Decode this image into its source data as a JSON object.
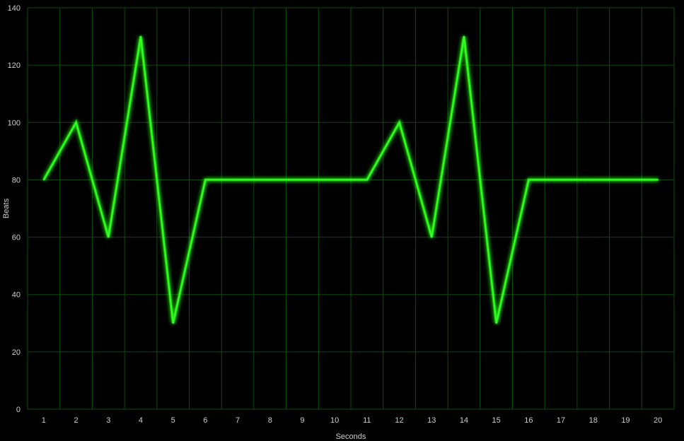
{
  "colors": {
    "background": "#000000",
    "gridline": "#0b4d0b",
    "series_line": "#33ff22",
    "series_glow": "#2aff1a",
    "text": "#cfcfcf"
  },
  "chart_data": {
    "type": "line",
    "title": "",
    "xlabel": "Seconds",
    "ylabel": "Beats",
    "categories": [
      "1",
      "2",
      "3",
      "4",
      "5",
      "6",
      "7",
      "8",
      "9",
      "10",
      "11",
      "12",
      "13",
      "14",
      "15",
      "16",
      "17",
      "18",
      "19",
      "20"
    ],
    "series": [
      {
        "values": [
          80,
          100,
          60,
          130,
          30,
          80,
          80,
          80,
          80,
          80,
          80,
          100,
          60,
          130,
          30,
          80,
          80,
          80,
          80,
          80
        ]
      }
    ],
    "ylim": [
      0,
      140
    ],
    "yticks": [
      0,
      20,
      40,
      60,
      80,
      100,
      120,
      140
    ],
    "grid": true,
    "legend": "none"
  }
}
